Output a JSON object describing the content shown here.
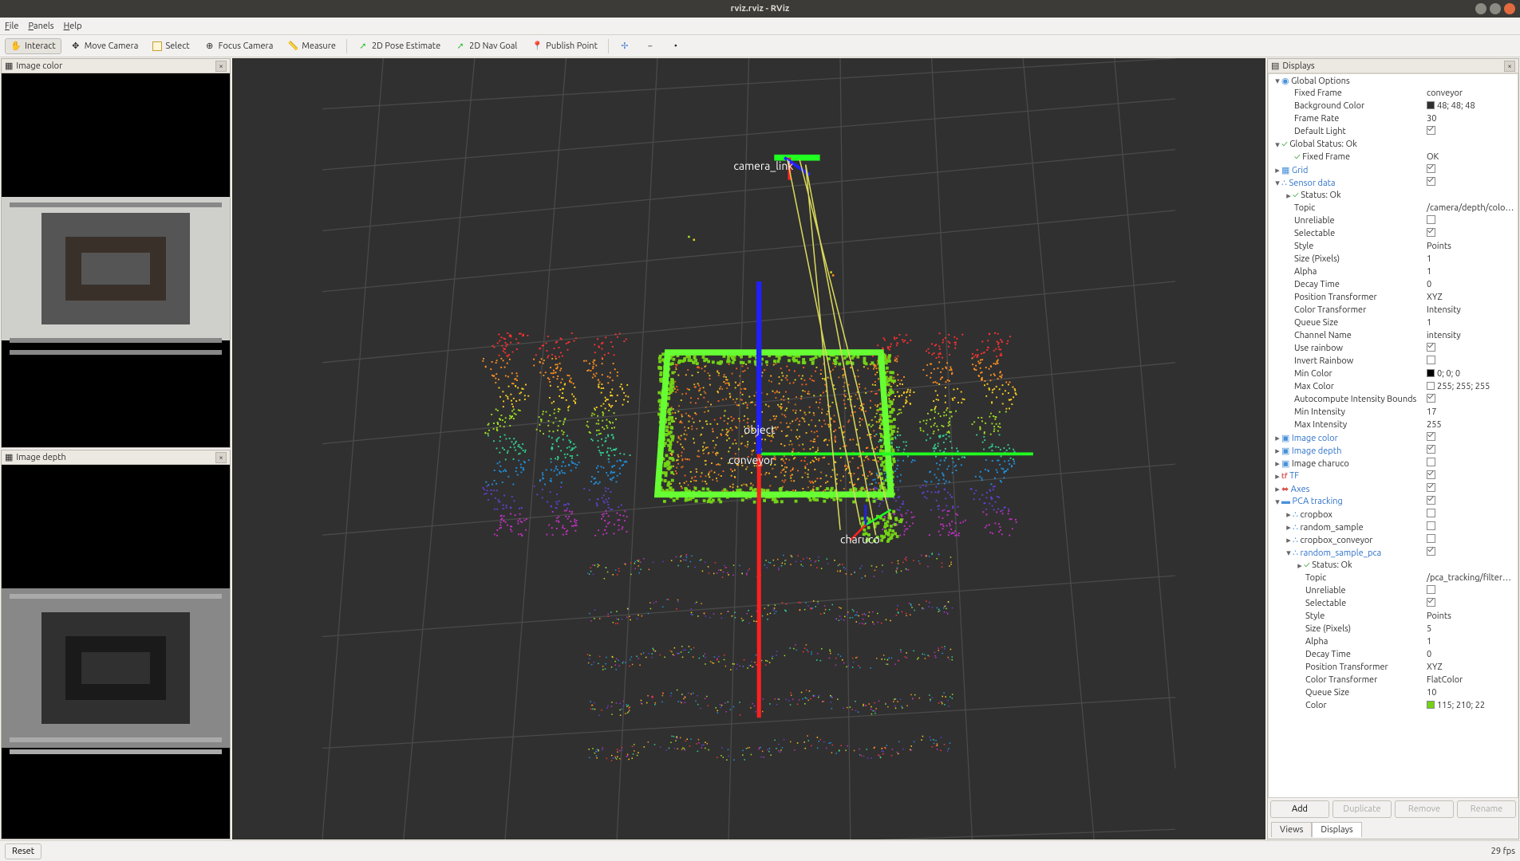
{
  "window": {
    "title": "rviz.rviz - RViz"
  },
  "menubar": {
    "file": "File",
    "panels": "Panels",
    "help": "Help"
  },
  "toolbar": {
    "interact": "Interact",
    "move_camera": "Move Camera",
    "select": "Select",
    "focus_camera": "Focus Camera",
    "measure": "Measure",
    "pose_estimate": "2D Pose Estimate",
    "nav_goal": "2D Nav Goal",
    "publish_point": "Publish Point"
  },
  "left": {
    "image_color": {
      "title": "Image color"
    },
    "image_depth": {
      "title": "Image depth"
    }
  },
  "viewport": {
    "bg": "#303030",
    "grid": "#4a4a4a",
    "labels": {
      "camera_link": "camera_link",
      "object": "object",
      "conveyor": "conveyor",
      "charuco": "charuco"
    },
    "axes": {
      "x": "#ff2020",
      "y": "#20ff20",
      "z": "#2020ff"
    },
    "box_color": "#66ff33",
    "ray_color": "#d8d85a"
  },
  "displays": {
    "title": "Displays",
    "add": "Add",
    "duplicate": "Duplicate",
    "remove": "Remove",
    "rename": "Rename",
    "tabs": {
      "views": "Views",
      "displays": "Displays"
    },
    "tree": [
      {
        "d": 0,
        "a": "down",
        "i": "globe",
        "l": "Global Options",
        "v": "",
        "li": false
      },
      {
        "d": 1,
        "a": "",
        "i": "",
        "l": "Fixed Frame",
        "v": "conveyor"
      },
      {
        "d": 1,
        "a": "",
        "i": "",
        "l": "Background Color",
        "v": "48; 48; 48",
        "sw": "#303030"
      },
      {
        "d": 1,
        "a": "",
        "i": "",
        "l": "Frame Rate",
        "v": "30"
      },
      {
        "d": 1,
        "a": "",
        "i": "",
        "l": "Default Light",
        "v": "check"
      },
      {
        "d": 0,
        "a": "down",
        "i": "ok",
        "l": "Global Status: Ok",
        "v": ""
      },
      {
        "d": 1,
        "a": "",
        "i": "ok",
        "l": "Fixed Frame",
        "v": "OK"
      },
      {
        "d": 0,
        "a": "right",
        "i": "grid",
        "l": "Grid",
        "v": "check",
        "li": true
      },
      {
        "d": 0,
        "a": "down",
        "i": "pc",
        "l": "Sensor data",
        "v": "check",
        "li": true
      },
      {
        "d": 1,
        "a": "right",
        "i": "ok",
        "l": "Status: Ok",
        "v": ""
      },
      {
        "d": 1,
        "a": "",
        "i": "",
        "l": "Topic",
        "v": "/camera/depth/color/p..."
      },
      {
        "d": 1,
        "a": "",
        "i": "",
        "l": "Unreliable",
        "v": "uncheck"
      },
      {
        "d": 1,
        "a": "",
        "i": "",
        "l": "Selectable",
        "v": "check"
      },
      {
        "d": 1,
        "a": "",
        "i": "",
        "l": "Style",
        "v": "Points"
      },
      {
        "d": 1,
        "a": "",
        "i": "",
        "l": "Size (Pixels)",
        "v": "1"
      },
      {
        "d": 1,
        "a": "",
        "i": "",
        "l": "Alpha",
        "v": "1"
      },
      {
        "d": 1,
        "a": "",
        "i": "",
        "l": "Decay Time",
        "v": "0"
      },
      {
        "d": 1,
        "a": "",
        "i": "",
        "l": "Position Transformer",
        "v": "XYZ"
      },
      {
        "d": 1,
        "a": "",
        "i": "",
        "l": "Color Transformer",
        "v": "Intensity"
      },
      {
        "d": 1,
        "a": "",
        "i": "",
        "l": "Queue Size",
        "v": "1"
      },
      {
        "d": 1,
        "a": "",
        "i": "",
        "l": "Channel Name",
        "v": "intensity"
      },
      {
        "d": 1,
        "a": "",
        "i": "",
        "l": "Use rainbow",
        "v": "check"
      },
      {
        "d": 1,
        "a": "",
        "i": "",
        "l": "Invert Rainbow",
        "v": "uncheck"
      },
      {
        "d": 1,
        "a": "",
        "i": "",
        "l": "Min Color",
        "v": "0; 0; 0",
        "sw": "#000000"
      },
      {
        "d": 1,
        "a": "",
        "i": "",
        "l": "Max Color",
        "v": "255; 255; 255",
        "sw": "#ffffff"
      },
      {
        "d": 1,
        "a": "",
        "i": "",
        "l": "Autocompute Intensity Bounds",
        "v": "check"
      },
      {
        "d": 1,
        "a": "",
        "i": "",
        "l": "Min Intensity",
        "v": "17"
      },
      {
        "d": 1,
        "a": "",
        "i": "",
        "l": "Max Intensity",
        "v": "255"
      },
      {
        "d": 0,
        "a": "right",
        "i": "img",
        "l": "Image color",
        "v": "check",
        "li": true
      },
      {
        "d": 0,
        "a": "right",
        "i": "img",
        "l": "Image depth",
        "v": "check",
        "li": true
      },
      {
        "d": 0,
        "a": "right",
        "i": "img",
        "l": "Image charuco",
        "v": "uncheck"
      },
      {
        "d": 0,
        "a": "right",
        "i": "tf",
        "l": "TF",
        "v": "check",
        "li": true
      },
      {
        "d": 0,
        "a": "right",
        "i": "ax",
        "l": "Axes",
        "v": "check",
        "li": true
      },
      {
        "d": 0,
        "a": "down",
        "i": "folder",
        "l": "PCA tracking",
        "v": "check",
        "li": true
      },
      {
        "d": 1,
        "a": "right",
        "i": "pc",
        "l": "cropbox",
        "v": "uncheck"
      },
      {
        "d": 1,
        "a": "right",
        "i": "pc",
        "l": "random_sample",
        "v": "uncheck"
      },
      {
        "d": 1,
        "a": "right",
        "i": "pc",
        "l": "cropbox_conveyor",
        "v": "uncheck"
      },
      {
        "d": 1,
        "a": "down",
        "i": "pc",
        "l": "random_sample_pca",
        "v": "check",
        "li": true
      },
      {
        "d": 2,
        "a": "right",
        "i": "ok",
        "l": "Status: Ok",
        "v": ""
      },
      {
        "d": 2,
        "a": "",
        "i": "",
        "l": "Topic",
        "v": "/pca_tracking/filtered_..."
      },
      {
        "d": 2,
        "a": "",
        "i": "",
        "l": "Unreliable",
        "v": "uncheck"
      },
      {
        "d": 2,
        "a": "",
        "i": "",
        "l": "Selectable",
        "v": "check"
      },
      {
        "d": 2,
        "a": "",
        "i": "",
        "l": "Style",
        "v": "Points"
      },
      {
        "d": 2,
        "a": "",
        "i": "",
        "l": "Size (Pixels)",
        "v": "5"
      },
      {
        "d": 2,
        "a": "",
        "i": "",
        "l": "Alpha",
        "v": "1"
      },
      {
        "d": 2,
        "a": "",
        "i": "",
        "l": "Decay Time",
        "v": "0"
      },
      {
        "d": 2,
        "a": "",
        "i": "",
        "l": "Position Transformer",
        "v": "XYZ"
      },
      {
        "d": 2,
        "a": "",
        "i": "",
        "l": "Color Transformer",
        "v": "FlatColor"
      },
      {
        "d": 2,
        "a": "",
        "i": "",
        "l": "Queue Size",
        "v": "10"
      },
      {
        "d": 2,
        "a": "",
        "i": "",
        "l": "Color",
        "v": "115; 210; 22",
        "sw": "#73d216"
      }
    ]
  },
  "footer": {
    "reset": "Reset",
    "fps": "29 fps"
  }
}
